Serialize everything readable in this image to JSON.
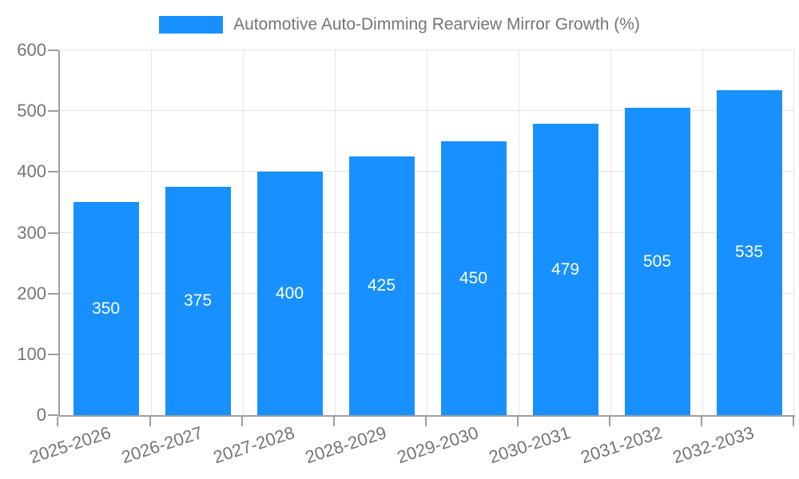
{
  "chart_data": {
    "type": "bar",
    "title": "Automotive Auto-Dimming Rearview Mirror Growth (%)",
    "legend_label": "Automotive Auto-Dimming Rearview Mirror Growth (%)",
    "legend_position": "top-center",
    "categories": [
      "2025-2026",
      "2026-2027",
      "2027-2028",
      "2028-2029",
      "2029-2030",
      "2030-2031",
      "2031-2032",
      "2032-2033"
    ],
    "values": [
      350,
      375,
      400,
      425,
      450,
      479,
      505,
      535
    ],
    "xlabel": "",
    "ylabel": "",
    "ylim": [
      0,
      600
    ],
    "yticks": [
      0,
      100,
      200,
      300,
      400,
      500,
      600
    ],
    "grid": true,
    "bar_value_labels": "centered-inside-white",
    "x_label_rotation_deg": -18,
    "colors": {
      "bar": "#1890ff",
      "bar_label_text": "#ffffff",
      "axis_line": "#9e9e9e",
      "grid_line": "#e5e5e5",
      "tick_text": "#757575",
      "legend_text": "#757575",
      "background": "#ffffff"
    }
  }
}
